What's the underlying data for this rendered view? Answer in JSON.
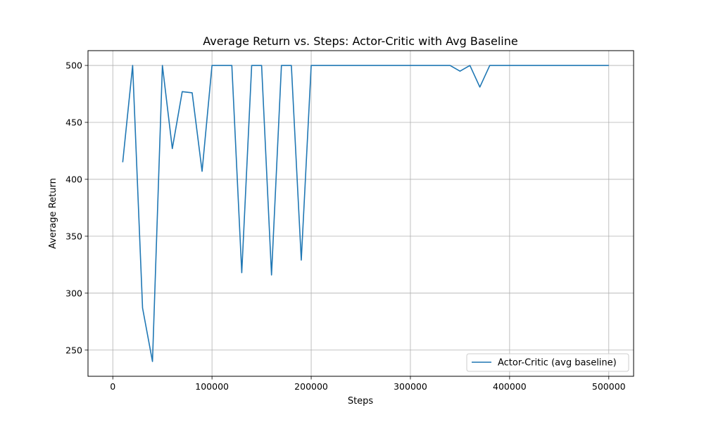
{
  "chart_data": {
    "type": "line",
    "title": "Average Return vs. Steps: Actor-Critic with Avg Baseline",
    "xlabel": "Steps",
    "ylabel": "Average Return",
    "xlim": [
      -25000,
      525000
    ],
    "ylim": [
      227,
      513
    ],
    "x_ticks": [
      0,
      100000,
      200000,
      300000,
      400000,
      500000
    ],
    "y_ticks": [
      250,
      300,
      350,
      400,
      450,
      500
    ],
    "grid": true,
    "legend_position": "lower-right",
    "series": [
      {
        "name": "Actor-Critic (avg baseline)",
        "color": "#1f77b4",
        "x": [
          10000,
          20000,
          30000,
          40000,
          50000,
          60000,
          70000,
          80000,
          90000,
          100000,
          110000,
          120000,
          130000,
          140000,
          150000,
          160000,
          170000,
          180000,
          190000,
          200000,
          210000,
          220000,
          230000,
          240000,
          250000,
          260000,
          270000,
          280000,
          290000,
          300000,
          310000,
          320000,
          330000,
          340000,
          350000,
          360000,
          370000,
          380000,
          390000,
          400000,
          410000,
          420000,
          430000,
          440000,
          450000,
          460000,
          470000,
          480000,
          490000,
          500000
        ],
        "values": [
          415,
          500,
          287,
          240,
          500,
          427,
          477,
          476,
          407,
          500,
          500,
          500,
          318,
          500,
          500,
          316,
          500,
          500,
          329,
          500,
          500,
          500,
          500,
          500,
          500,
          500,
          500,
          500,
          500,
          500,
          500,
          500,
          500,
          500,
          495,
          500,
          481,
          500,
          500,
          500,
          500,
          500,
          500,
          500,
          500,
          500,
          500,
          500,
          500,
          500
        ]
      }
    ]
  }
}
